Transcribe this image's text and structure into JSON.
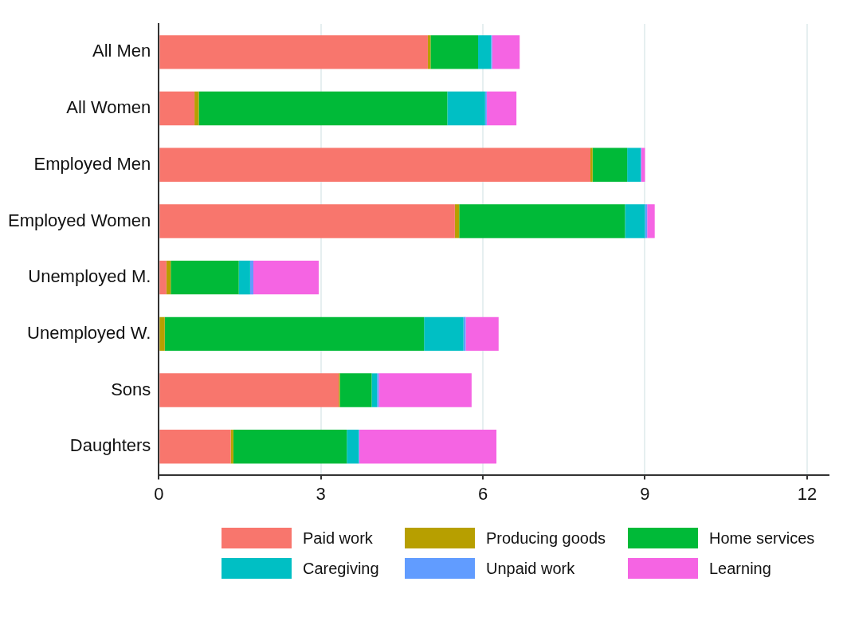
{
  "chart_data": {
    "type": "bar",
    "orientation": "horizontal",
    "stacked": true,
    "categories": [
      "All Men",
      "All Women",
      "Employed Men",
      "Employed Women",
      "Unemployed M.",
      "Unemployed W.",
      "Sons",
      "Daughters"
    ],
    "series": [
      {
        "name": "Paid work",
        "color": "#f8766d",
        "values": [
          4.98,
          0.66,
          7.99,
          5.48,
          0.14,
          0,
          3.33,
          1.33
        ]
      },
      {
        "name": "Producing goods",
        "color": "#b79f00",
        "values": [
          0.05,
          0.08,
          0.04,
          0.08,
          0.08,
          0.11,
          0.02,
          0.05
        ]
      },
      {
        "name": "Home services",
        "color": "#00ba38",
        "values": [
          0.88,
          4.6,
          0.64,
          3.07,
          1.26,
          4.8,
          0.59,
          2.1
        ]
      },
      {
        "name": "Caregiving",
        "color": "#00bfc4",
        "values": [
          0.24,
          0.7,
          0.25,
          0.37,
          0.21,
          0.73,
          0.1,
          0.22
        ]
      },
      {
        "name": "Unpaid work",
        "color": "#619cff",
        "values": [
          0.02,
          0.03,
          0.01,
          0.04,
          0.06,
          0.04,
          0.03,
          0.01
        ]
      },
      {
        "name": "Learning",
        "color": "#f564e3",
        "values": [
          0.51,
          0.55,
          0.07,
          0.14,
          1.21,
          0.61,
          1.72,
          2.54
        ]
      }
    ],
    "xlim": [
      0,
      12.4
    ],
    "xticks": [
      0,
      3,
      6,
      9,
      12
    ],
    "grid": "x",
    "legend": "bottom"
  }
}
